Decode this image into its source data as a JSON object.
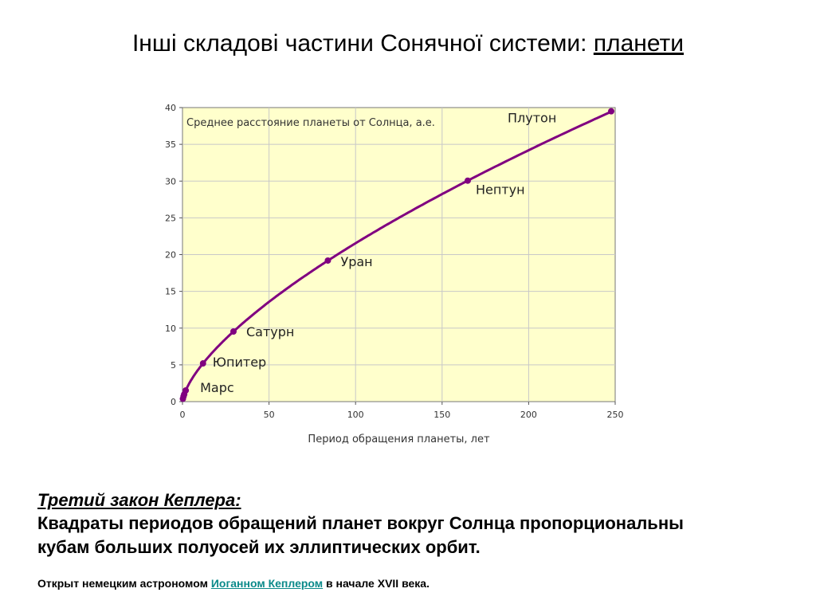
{
  "slide": {
    "title_prefix": "Інші складові частини Сонячної системи: ",
    "title_link": "планети"
  },
  "law": {
    "heading": "Третий закон Кеплера:",
    "line1": "Квадраты периодов обращений планет вокруг Солнца пропорциональны",
    "line2": "кубам больших полуосей их эллиптических орбит."
  },
  "footnote": {
    "prefix": "Открыт немецким астрономом ",
    "link": "Иоганном Кеплером",
    "suffix": " в начале XVII века."
  },
  "chart_data": {
    "type": "line",
    "title": "Среднее расстояние планеты от Солнца, а.е.",
    "xlabel": "Период обращения планеты, лет",
    "ylabel": "",
    "xlim": [
      0,
      250
    ],
    "ylim": [
      0,
      40
    ],
    "xticks": [
      0,
      50,
      100,
      150,
      200,
      250
    ],
    "yticks": [
      0,
      5,
      10,
      15,
      20,
      25,
      30,
      35,
      40
    ],
    "grid": true,
    "colors": {
      "background": "#ffffcc",
      "line": "#800080",
      "grid": "#c8c8c8"
    },
    "points": [
      {
        "name": "",
        "x": 0.24,
        "y": 0.39
      },
      {
        "name": "",
        "x": 0.62,
        "y": 0.72
      },
      {
        "name": "",
        "x": 1.0,
        "y": 1.0
      },
      {
        "name": "Марс",
        "x": 1.88,
        "y": 1.52
      },
      {
        "name": "Юпитер",
        "x": 11.86,
        "y": 5.2
      },
      {
        "name": "Сатурн",
        "x": 29.46,
        "y": 9.54
      },
      {
        "name": "Уран",
        "x": 84.0,
        "y": 19.19
      },
      {
        "name": "Нептун",
        "x": 164.8,
        "y": 30.06
      },
      {
        "name": "Плутон",
        "x": 247.7,
        "y": 39.5
      }
    ]
  }
}
